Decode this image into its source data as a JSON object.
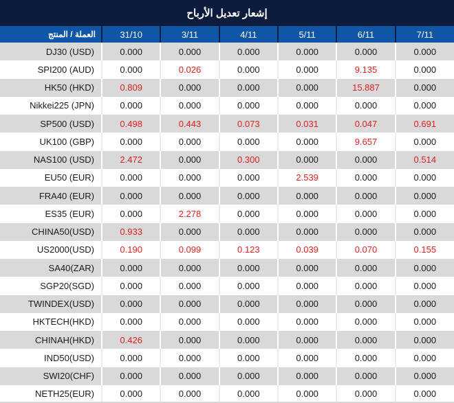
{
  "title": "إشعار تعديل الأرباح",
  "table": {
    "product_header": "العملة / المنتج",
    "date_columns": [
      "31/10",
      "3/11",
      "4/11",
      "5/11",
      "6/11",
      "7/11"
    ],
    "rows": [
      {
        "product": "DJ30 (USD)",
        "values": [
          "0.000",
          "0.000",
          "0.000",
          "0.000",
          "0.000",
          "0.000"
        ]
      },
      {
        "product": "SPI200 (AUD)",
        "values": [
          "0.000",
          "0.026",
          "0.000",
          "0.000",
          "9.135",
          "0.000"
        ]
      },
      {
        "product": "HK50 (HKD)",
        "values": [
          "0.809",
          "0.000",
          "0.000",
          "0.000",
          "15.887",
          "0.000"
        ]
      },
      {
        "product": "Nikkei225 (JPN)",
        "values": [
          "0.000",
          "0.000",
          "0.000",
          "0.000",
          "0.000",
          "0.000"
        ]
      },
      {
        "product": "SP500 (USD)",
        "values": [
          "0.498",
          "0.443",
          "0.073",
          "0.031",
          "0.047",
          "0.691"
        ]
      },
      {
        "product": "UK100 (GBP)",
        "values": [
          "0.000",
          "0.000",
          "0.000",
          "0.000",
          "9.657",
          "0.000"
        ]
      },
      {
        "product": "NAS100 (USD)",
        "values": [
          "2.472",
          "0.000",
          "0.300",
          "0.000",
          "0.000",
          "0.514"
        ]
      },
      {
        "product": "EU50 (EUR)",
        "values": [
          "0.000",
          "0.000",
          "0.000",
          "2.539",
          "0.000",
          "0.000"
        ]
      },
      {
        "product": "FRA40 (EUR)",
        "values": [
          "0.000",
          "0.000",
          "0.000",
          "0.000",
          "0.000",
          "0.000"
        ]
      },
      {
        "product": "ES35 (EUR)",
        "values": [
          "0.000",
          "2.278",
          "0.000",
          "0.000",
          "0.000",
          "0.000"
        ]
      },
      {
        "product": "CHINA50(USD)",
        "values": [
          "0.933",
          "0.000",
          "0.000",
          "0.000",
          "0.000",
          "0.000"
        ]
      },
      {
        "product": "US2000(USD)",
        "values": [
          "0.190",
          "0.099",
          "0.123",
          "0.039",
          "0.070",
          "0.155"
        ]
      },
      {
        "product": "SA40(ZAR)",
        "values": [
          "0.000",
          "0.000",
          "0.000",
          "0.000",
          "0.000",
          "0.000"
        ]
      },
      {
        "product": "SGP20(SGD)",
        "values": [
          "0.000",
          "0.000",
          "0.000",
          "0.000",
          "0.000",
          "0.000"
        ]
      },
      {
        "product": "TWINDEX(USD)",
        "values": [
          "0.000",
          "0.000",
          "0.000",
          "0.000",
          "0.000",
          "0.000"
        ]
      },
      {
        "product": "HKTECH(HKD)",
        "values": [
          "0.000",
          "0.000",
          "0.000",
          "0.000",
          "0.000",
          "0.000"
        ]
      },
      {
        "product": "CHINAH(HKD)",
        "values": [
          "0.426",
          "0.000",
          "0.000",
          "0.000",
          "0.000",
          "0.000"
        ]
      },
      {
        "product": "IND50(USD)",
        "values": [
          "0.000",
          "0.000",
          "0.000",
          "0.000",
          "0.000",
          "0.000"
        ]
      },
      {
        "product": "SWI20(CHF)",
        "values": [
          "0.000",
          "0.000",
          "0.000",
          "0.000",
          "0.000",
          "0.000"
        ]
      },
      {
        "product": "NETH25(EUR)",
        "values": [
          "0.000",
          "0.000",
          "0.000",
          "0.000",
          "0.000",
          "0.000"
        ]
      }
    ]
  },
  "colors": {
    "banner_bg": "#0d1b3c",
    "header_bg": "#0f56a6",
    "stripe_gray": "#d9d9d9",
    "highlight_red": "#e02020",
    "text_dark": "#1a1a1a",
    "header_text": "#ffffff"
  }
}
